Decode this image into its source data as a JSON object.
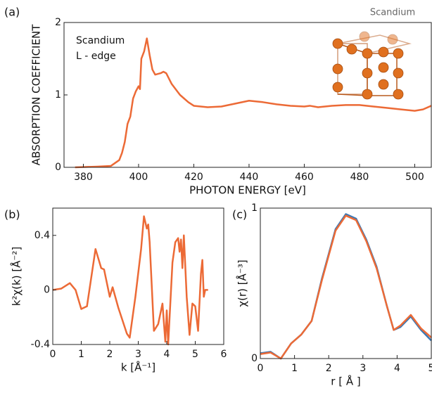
{
  "chart_data": [
    {
      "type": "line",
      "panel_label": "(a)",
      "title": "Scandium",
      "annotation": [
        "Scandium",
        "L - edge"
      ],
      "xlabel": "PHOTON ENERGY [eV]",
      "ylabel": "ABSORPTION COEFFICIENT",
      "xlim": [
        373,
        506
      ],
      "ylim": [
        0,
        2
      ],
      "xticks": [
        380,
        400,
        420,
        440,
        460,
        480,
        500
      ],
      "yticks": [
        0,
        1,
        2
      ],
      "x": [
        377,
        385,
        390,
        393,
        394,
        395,
        396,
        397,
        398,
        399,
        400,
        400.5,
        401,
        402,
        403,
        404,
        405,
        406,
        408,
        409,
        410,
        412,
        415,
        418,
        420,
        425,
        430,
        435,
        440,
        445,
        450,
        455,
        460,
        462,
        465,
        470,
        475,
        480,
        485,
        490,
        495,
        500,
        503,
        506
      ],
      "series": [
        {
          "name": "Scandium L-edge",
          "color": "#ec6a36",
          "values": [
            0,
            0.01,
            0.02,
            0.1,
            0.2,
            0.35,
            0.6,
            0.7,
            0.95,
            1.05,
            1.12,
            1.08,
            1.5,
            1.6,
            1.78,
            1.55,
            1.35,
            1.28,
            1.3,
            1.32,
            1.3,
            1.15,
            1.0,
            0.9,
            0.85,
            0.83,
            0.84,
            0.88,
            0.92,
            0.9,
            0.87,
            0.85,
            0.84,
            0.85,
            0.83,
            0.85,
            0.86,
            0.86,
            0.84,
            0.82,
            0.8,
            0.78,
            0.8,
            0.85
          ]
        }
      ]
    },
    {
      "type": "line",
      "panel_label": "(b)",
      "xlabel": "k [Å⁻¹]",
      "ylabel": "k²χ(k) [Å⁻²]",
      "xlim": [
        0,
        6
      ],
      "ylim": [
        -0.4,
        0.6
      ],
      "xticks": [
        0,
        1,
        2,
        3,
        4,
        5,
        6
      ],
      "yticks": [
        -0.4,
        0,
        0.4
      ],
      "x": [
        0,
        0.3,
        0.6,
        0.8,
        1.0,
        1.2,
        1.5,
        1.7,
        1.8,
        2.0,
        2.1,
        2.3,
        2.6,
        2.7,
        2.9,
        3.1,
        3.2,
        3.3,
        3.35,
        3.4,
        3.55,
        3.7,
        3.85,
        3.95,
        4.0,
        4.05,
        4.2,
        4.3,
        4.4,
        4.45,
        4.5,
        4.55,
        4.6,
        4.7,
        4.8,
        4.9,
        5.0,
        5.1,
        5.2,
        5.25,
        5.3,
        5.35,
        5.45
      ],
      "series": [
        {
          "name": "k2chi",
          "color": "#ec6a36",
          "values": [
            0,
            0.01,
            0.05,
            0,
            -0.14,
            -0.12,
            0.3,
            0.16,
            0.15,
            -0.05,
            0.02,
            -0.13,
            -0.32,
            -0.35,
            -0.05,
            0.3,
            0.54,
            0.45,
            0.48,
            0.35,
            -0.3,
            -0.25,
            -0.1,
            -0.38,
            -0.15,
            -0.4,
            0.2,
            0.35,
            0.38,
            0.28,
            0.37,
            0.16,
            0.4,
            -0.05,
            -0.33,
            -0.1,
            -0.12,
            -0.3,
            0.12,
            0.22,
            -0.05,
            0,
            0
          ]
        }
      ]
    },
    {
      "type": "line",
      "panel_label": "(c)",
      "xlabel": "r [ Å ]",
      "ylabel": "χ(r) [Å⁻³]",
      "xlim": [
        0,
        5
      ],
      "ylim": [
        0,
        1
      ],
      "xticks": [
        0,
        1,
        2,
        3,
        4,
        5
      ],
      "yticks": [
        0,
        1
      ],
      "x": [
        0,
        0.3,
        0.6,
        0.9,
        1.2,
        1.5,
        1.8,
        2.2,
        2.5,
        2.8,
        3.1,
        3.4,
        3.7,
        3.9,
        4.1,
        4.4,
        4.7,
        5.0
      ],
      "series": [
        {
          "name": "blue",
          "color": "#3a78b5",
          "values": [
            0.035,
            0.045,
            0,
            0.1,
            0.16,
            0.25,
            0.53,
            0.86,
            0.96,
            0.93,
            0.79,
            0.61,
            0.35,
            0.19,
            0.21,
            0.28,
            0.19,
            0.12
          ]
        },
        {
          "name": "orange",
          "color": "#ec6a36",
          "values": [
            0.03,
            0.04,
            0,
            0.1,
            0.16,
            0.25,
            0.52,
            0.85,
            0.95,
            0.92,
            0.78,
            0.6,
            0.35,
            0.19,
            0.22,
            0.29,
            0.2,
            0.14
          ]
        }
      ]
    }
  ]
}
